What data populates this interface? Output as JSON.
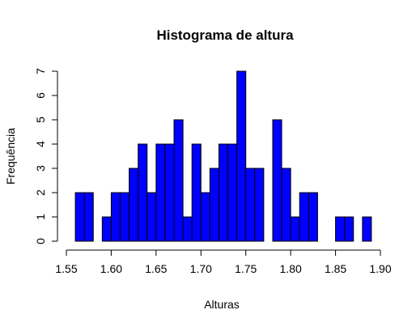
{
  "chart_data": {
    "type": "bar",
    "title": "Histograma de altura",
    "xlabel": "Alturas",
    "ylabel": "Frequência",
    "xlim": [
      1.55,
      1.9
    ],
    "ylim": [
      0,
      7
    ],
    "bin_width": 0.01,
    "bins": [
      1.56,
      1.57,
      1.58,
      1.59,
      1.6,
      1.61,
      1.62,
      1.63,
      1.64,
      1.65,
      1.66,
      1.67,
      1.68,
      1.69,
      1.7,
      1.71,
      1.72,
      1.73,
      1.74,
      1.75,
      1.76,
      1.77,
      1.78,
      1.79,
      1.8,
      1.81,
      1.82,
      1.83,
      1.84,
      1.85,
      1.86,
      1.87,
      1.88
    ],
    "values": [
      2,
      2,
      0,
      1,
      2,
      2,
      3,
      4,
      2,
      4,
      4,
      5,
      1,
      4,
      2,
      3,
      4,
      4,
      7,
      3,
      3,
      0,
      5,
      3,
      1,
      2,
      2,
      0,
      0,
      1,
      1,
      0,
      1
    ],
    "x_ticks": [
      "1.55",
      "1.60",
      "1.65",
      "1.70",
      "1.75",
      "1.80",
      "1.85",
      "1.90"
    ],
    "x_tick_values": [
      1.55,
      1.6,
      1.65,
      1.7,
      1.75,
      1.8,
      1.85,
      1.9
    ],
    "y_ticks": [
      "0",
      "1",
      "2",
      "3",
      "4",
      "5",
      "6",
      "7"
    ],
    "y_tick_values": [
      0,
      1,
      2,
      3,
      4,
      5,
      6,
      7
    ],
    "grid": false,
    "bar_color": "#0000ff"
  }
}
